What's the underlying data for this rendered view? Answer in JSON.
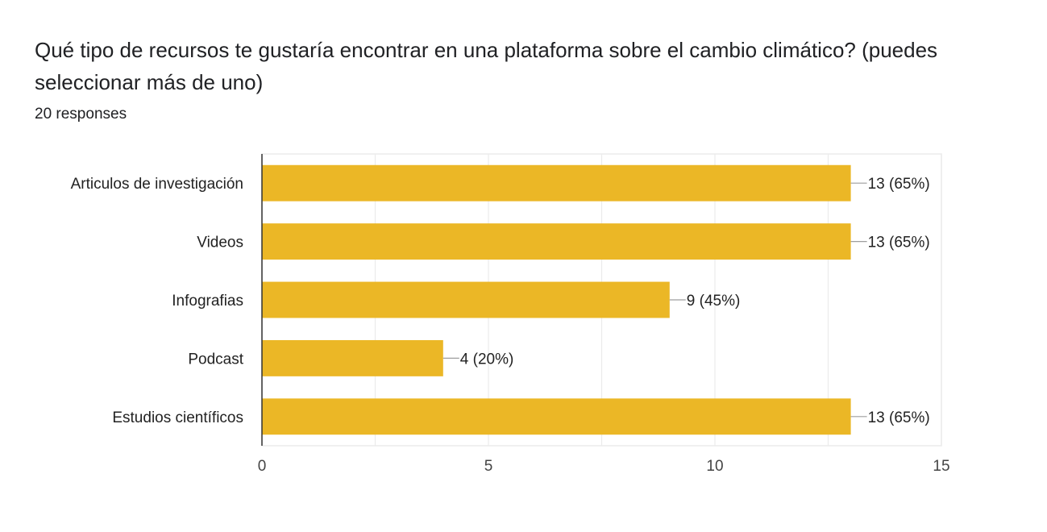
{
  "title": "Qué tipo de recursos te gustaría encontrar en una plataforma sobre el cambio climático? (puedes seleccionar más de uno)",
  "responses": "20 responses",
  "colors": {
    "bar": "#EBB726",
    "axis": "#333333",
    "grid": "#EBEBEB",
    "leader": "#9E9E9E"
  },
  "chart_data": {
    "type": "bar",
    "orientation": "horizontal",
    "title": "Qué tipo de recursos te gustaría encontrar en una plataforma sobre el cambio climático? (puedes seleccionar más de uno)",
    "xlabel": "",
    "ylabel": "",
    "categories": [
      "Articulos de investigación",
      "Videos",
      "Infografias",
      "Podcast",
      "Estudios científicos"
    ],
    "values": [
      13,
      13,
      9,
      4,
      13
    ],
    "data_labels": [
      "13 (65%)",
      "13 (65%)",
      "9 (45%)",
      "4 (20%)",
      "13 (65%)"
    ],
    "xlim": [
      0,
      15
    ],
    "x_ticks": [
      0,
      5,
      10,
      15
    ],
    "grid": true,
    "legend": "none"
  }
}
